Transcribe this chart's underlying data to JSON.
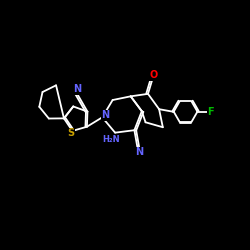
{
  "bg_color": "#000000",
  "bond_color": "#ffffff",
  "atom_colors": {
    "N": "#6464ff",
    "O": "#ff0000",
    "S": "#c8a000",
    "F": "#00bb00",
    "C": "#ffffff",
    "H": "#ffffff"
  },
  "figsize": [
    2.5,
    2.5
  ],
  "dpi": 100,
  "lw": 1.3
}
